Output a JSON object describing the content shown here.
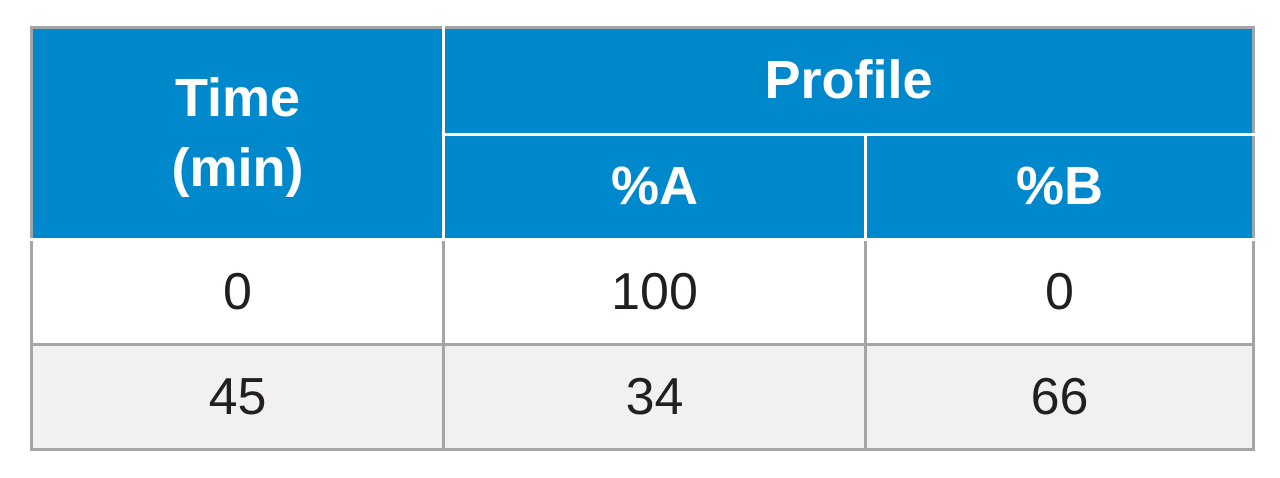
{
  "table": {
    "header": {
      "time_line1": "Time",
      "time_line2": "(min)",
      "profile": "Profile",
      "col_a": "%A",
      "col_b": "%B"
    },
    "rows": [
      {
        "time": "0",
        "a": "100",
        "b": "0"
      },
      {
        "time": "45",
        "a": "34",
        "b": "66"
      }
    ],
    "colors": {
      "header_bg": "#0088cc",
      "header_text": "#ffffff",
      "border": "#a3a5a8",
      "row_alt_bg": "#f1f1f2",
      "body_text": "#231f20"
    }
  }
}
